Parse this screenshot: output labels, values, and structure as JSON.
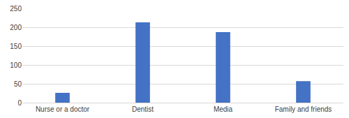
{
  "chart_data": {
    "type": "bar",
    "categories": [
      "Nurse or a doctor",
      "Dentist",
      "Media",
      "Family and friends"
    ],
    "values": [
      26,
      213,
      187,
      57
    ],
    "color": "#4472c4",
    "ylim": [
      0,
      250
    ],
    "yticks": [
      0,
      50,
      100,
      150,
      200,
      250
    ],
    "grid": true
  }
}
